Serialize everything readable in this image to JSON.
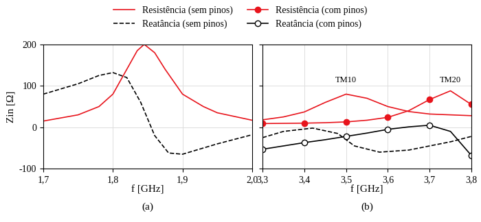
{
  "chart_data": [
    {
      "type": "line",
      "subtitle": "(a)",
      "x_label": "f [GHz]",
      "y_label": "Zin [Ω]",
      "xlim": [
        1.7,
        2.0
      ],
      "xticks": [
        {
          "value": 1.7,
          "label": "1,7"
        },
        {
          "value": 1.8,
          "label": "1,8"
        },
        {
          "value": 1.9,
          "label": "1,9"
        },
        {
          "value": 2.0,
          "label": "2,0"
        }
      ],
      "ylim": [
        -100,
        200
      ],
      "yticks": [
        -100,
        0,
        100,
        200
      ],
      "grid": true,
      "series": [
        {
          "name": "Resistência (sem pinos)",
          "color": "#e8141c",
          "line_style": "solid",
          "marker": "none",
          "x": [
            1.7,
            1.75,
            1.78,
            1.8,
            1.82,
            1.835,
            1.845,
            1.86,
            1.875,
            1.9,
            1.93,
            1.95,
            2.0
          ],
          "values": [
            15,
            30,
            50,
            80,
            140,
            185,
            200,
            180,
            140,
            80,
            50,
            35,
            17
          ]
        },
        {
          "name": "Reatância (sem pinos)",
          "color": "#000000",
          "line_style": "dashed",
          "marker": "none",
          "x": [
            1.7,
            1.75,
            1.78,
            1.8,
            1.82,
            1.84,
            1.85,
            1.86,
            1.88,
            1.9,
            1.95,
            2.0
          ],
          "values": [
            80,
            105,
            125,
            132,
            120,
            60,
            20,
            -20,
            -62,
            -65,
            -40,
            -18
          ]
        }
      ]
    },
    {
      "type": "line",
      "subtitle": "(b)",
      "x_label": "f [GHz]",
      "xlim": [
        3.3,
        3.8
      ],
      "xticks": [
        {
          "value": 3.3,
          "label": "3,3"
        },
        {
          "value": 3.4,
          "label": "3,4"
        },
        {
          "value": 3.5,
          "label": "3,5"
        },
        {
          "value": 3.6,
          "label": "3,6"
        },
        {
          "value": 3.7,
          "label": "3,7"
        },
        {
          "value": 3.8,
          "label": "3,8"
        }
      ],
      "ylim": [
        -100,
        200
      ],
      "yticks": [
        -100,
        0,
        100,
        200
      ],
      "grid": true,
      "tick_labels": "x",
      "legend": "upper center",
      "annotations": [
        {
          "text": "TM10",
          "x": 3.5
        },
        {
          "text": "TM20",
          "x": 3.75
        }
      ],
      "series": [
        {
          "name": "Resistência (sem pinos)",
          "color": "#e8141c",
          "line_style": "solid",
          "marker": "none",
          "x": [
            3.3,
            3.35,
            3.4,
            3.45,
            3.5,
            3.55,
            3.6,
            3.65,
            3.7,
            3.75,
            3.8
          ],
          "values": [
            18,
            25,
            37,
            60,
            80,
            70,
            50,
            38,
            32,
            30,
            28
          ]
        },
        {
          "name": "Reatância (sem pinos)",
          "color": "#000000",
          "line_style": "dashed",
          "marker": "none",
          "x": [
            3.3,
            3.35,
            3.42,
            3.48,
            3.52,
            3.58,
            3.65,
            3.7,
            3.75,
            3.8
          ],
          "values": [
            -25,
            -10,
            -2,
            -15,
            -45,
            -60,
            -55,
            -45,
            -35,
            -22
          ]
        },
        {
          "name": "Resistência (com pinos)",
          "color": "#e8141c",
          "line_style": "solid",
          "marker": "filled_circle",
          "x": [
            3.3,
            3.35,
            3.4,
            3.45,
            3.5,
            3.55,
            3.6,
            3.65,
            3.7,
            3.75,
            3.8
          ],
          "values": [
            9,
            9.5,
            10,
            11,
            13,
            17,
            24,
            40,
            67,
            88,
            55
          ]
        },
        {
          "name": "Reatância (com pinos)",
          "color": "#000000",
          "line_style": "solid",
          "marker": "open_circle",
          "x": [
            3.3,
            3.35,
            3.4,
            3.45,
            3.5,
            3.55,
            3.6,
            3.65,
            3.7,
            3.75,
            3.8
          ],
          "values": [
            -53,
            -45,
            -37,
            -30,
            -22,
            -14,
            -5,
            1,
            5,
            -10,
            -68
          ]
        }
      ]
    }
  ]
}
